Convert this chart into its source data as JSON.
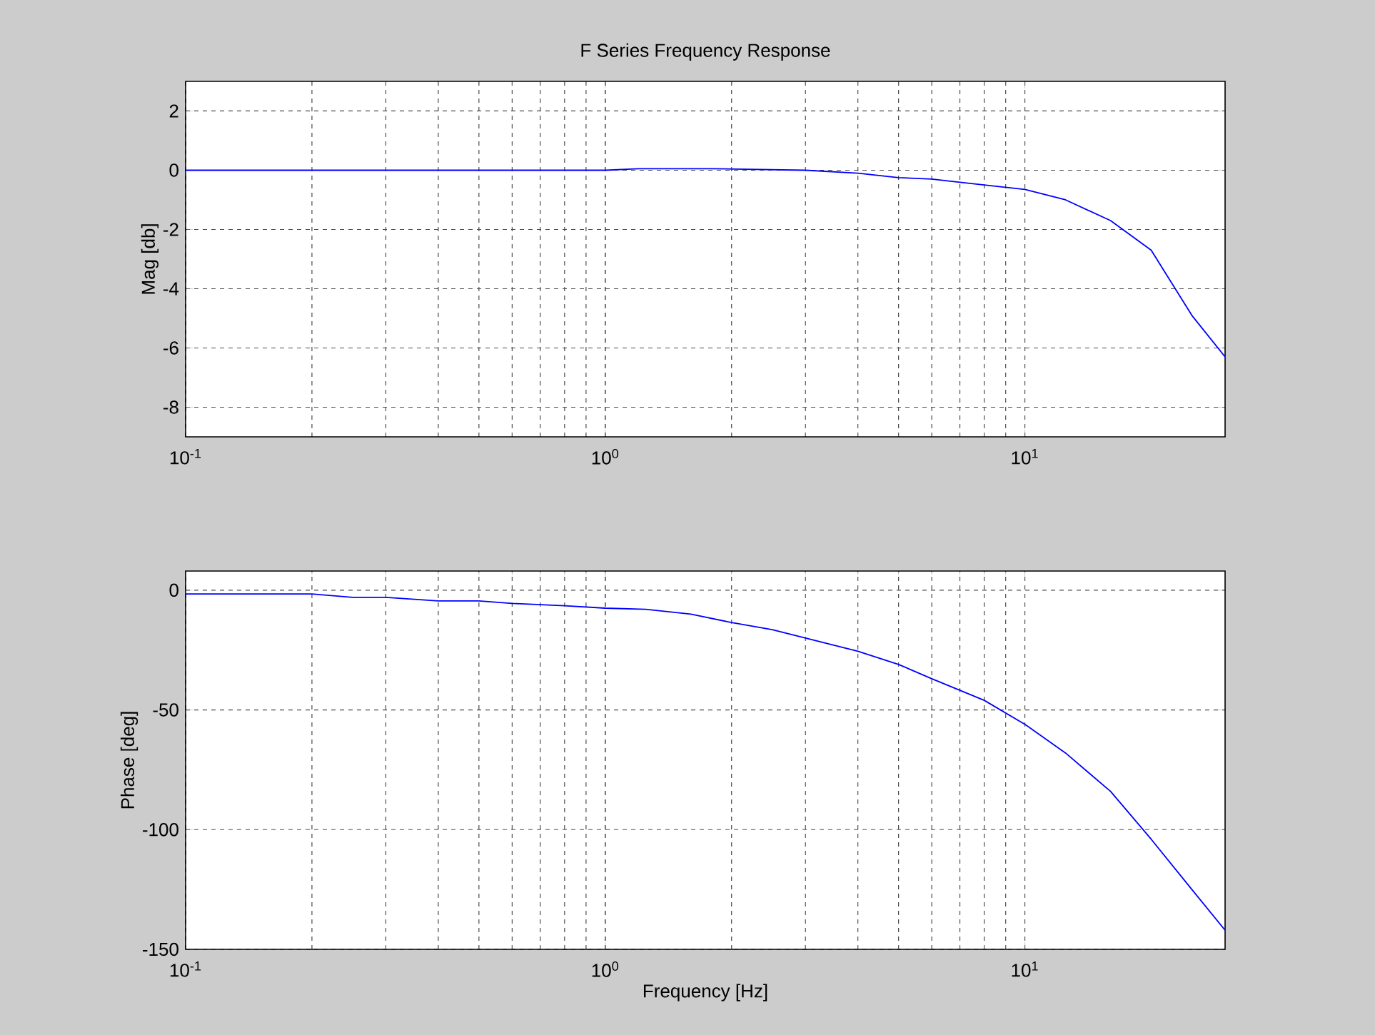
{
  "chart_data": [
    {
      "type": "line",
      "title": "F Series Frequency Response",
      "ylabel": "Mag [db]",
      "log": "x",
      "grid": true,
      "xlim": [
        0.1,
        30
      ],
      "ylim": [
        -9,
        3
      ],
      "xticks": [
        {
          "value": 0.1,
          "label": "10$^{-1}$"
        },
        {
          "value": 1,
          "label": "10$^{0}$"
        },
        {
          "value": 10,
          "label": "10$^{1}$"
        }
      ],
      "yticks": [
        -8,
        -6,
        -4,
        -2,
        0,
        2
      ],
      "series": [
        {
          "color": "#0000ff",
          "x": [
            0.1,
            0.5,
            1,
            1.2,
            1.8,
            3,
            4,
            5,
            6,
            8,
            10,
            12.5,
            16,
            20,
            25,
            30
          ],
          "values": [
            0,
            0,
            0,
            0.05,
            0.05,
            0,
            -0.1,
            -0.25,
            -0.3,
            -0.5,
            -0.65,
            -1.0,
            -1.7,
            -2.7,
            -4.9,
            -6.3
          ]
        }
      ]
    },
    {
      "type": "line",
      "xlabel": "Frequency  [Hz]",
      "ylabel": "Phase [deg]",
      "log": "x",
      "grid": true,
      "xlim": [
        0.1,
        30
      ],
      "ylim": [
        -150,
        8
      ],
      "xticks": [
        {
          "value": 0.1,
          "label": "10$^{-1}$"
        },
        {
          "value": 1,
          "label": "10$^{0}$"
        },
        {
          "value": 10,
          "label": "10$^{1}$"
        }
      ],
      "yticks": [
        -150,
        -100,
        -50,
        0
      ],
      "series": [
        {
          "color": "#0000ff",
          "x": [
            0.1,
            0.2,
            0.25,
            0.3,
            0.4,
            0.5,
            0.6,
            0.8,
            1,
            1.25,
            1.6,
            2,
            2.5,
            3,
            4,
            5,
            6,
            8,
            10,
            12.5,
            16,
            20,
            25,
            30
          ],
          "values": [
            -1.6,
            -1.6,
            -3,
            -3,
            -4.5,
            -4.5,
            -5.5,
            -6.5,
            -7.5,
            -8,
            -10,
            -13.5,
            -16.5,
            -20,
            -25.5,
            -31,
            -37,
            -46,
            -56,
            -68,
            -84,
            -104,
            -125,
            -142
          ]
        }
      ]
    }
  ]
}
